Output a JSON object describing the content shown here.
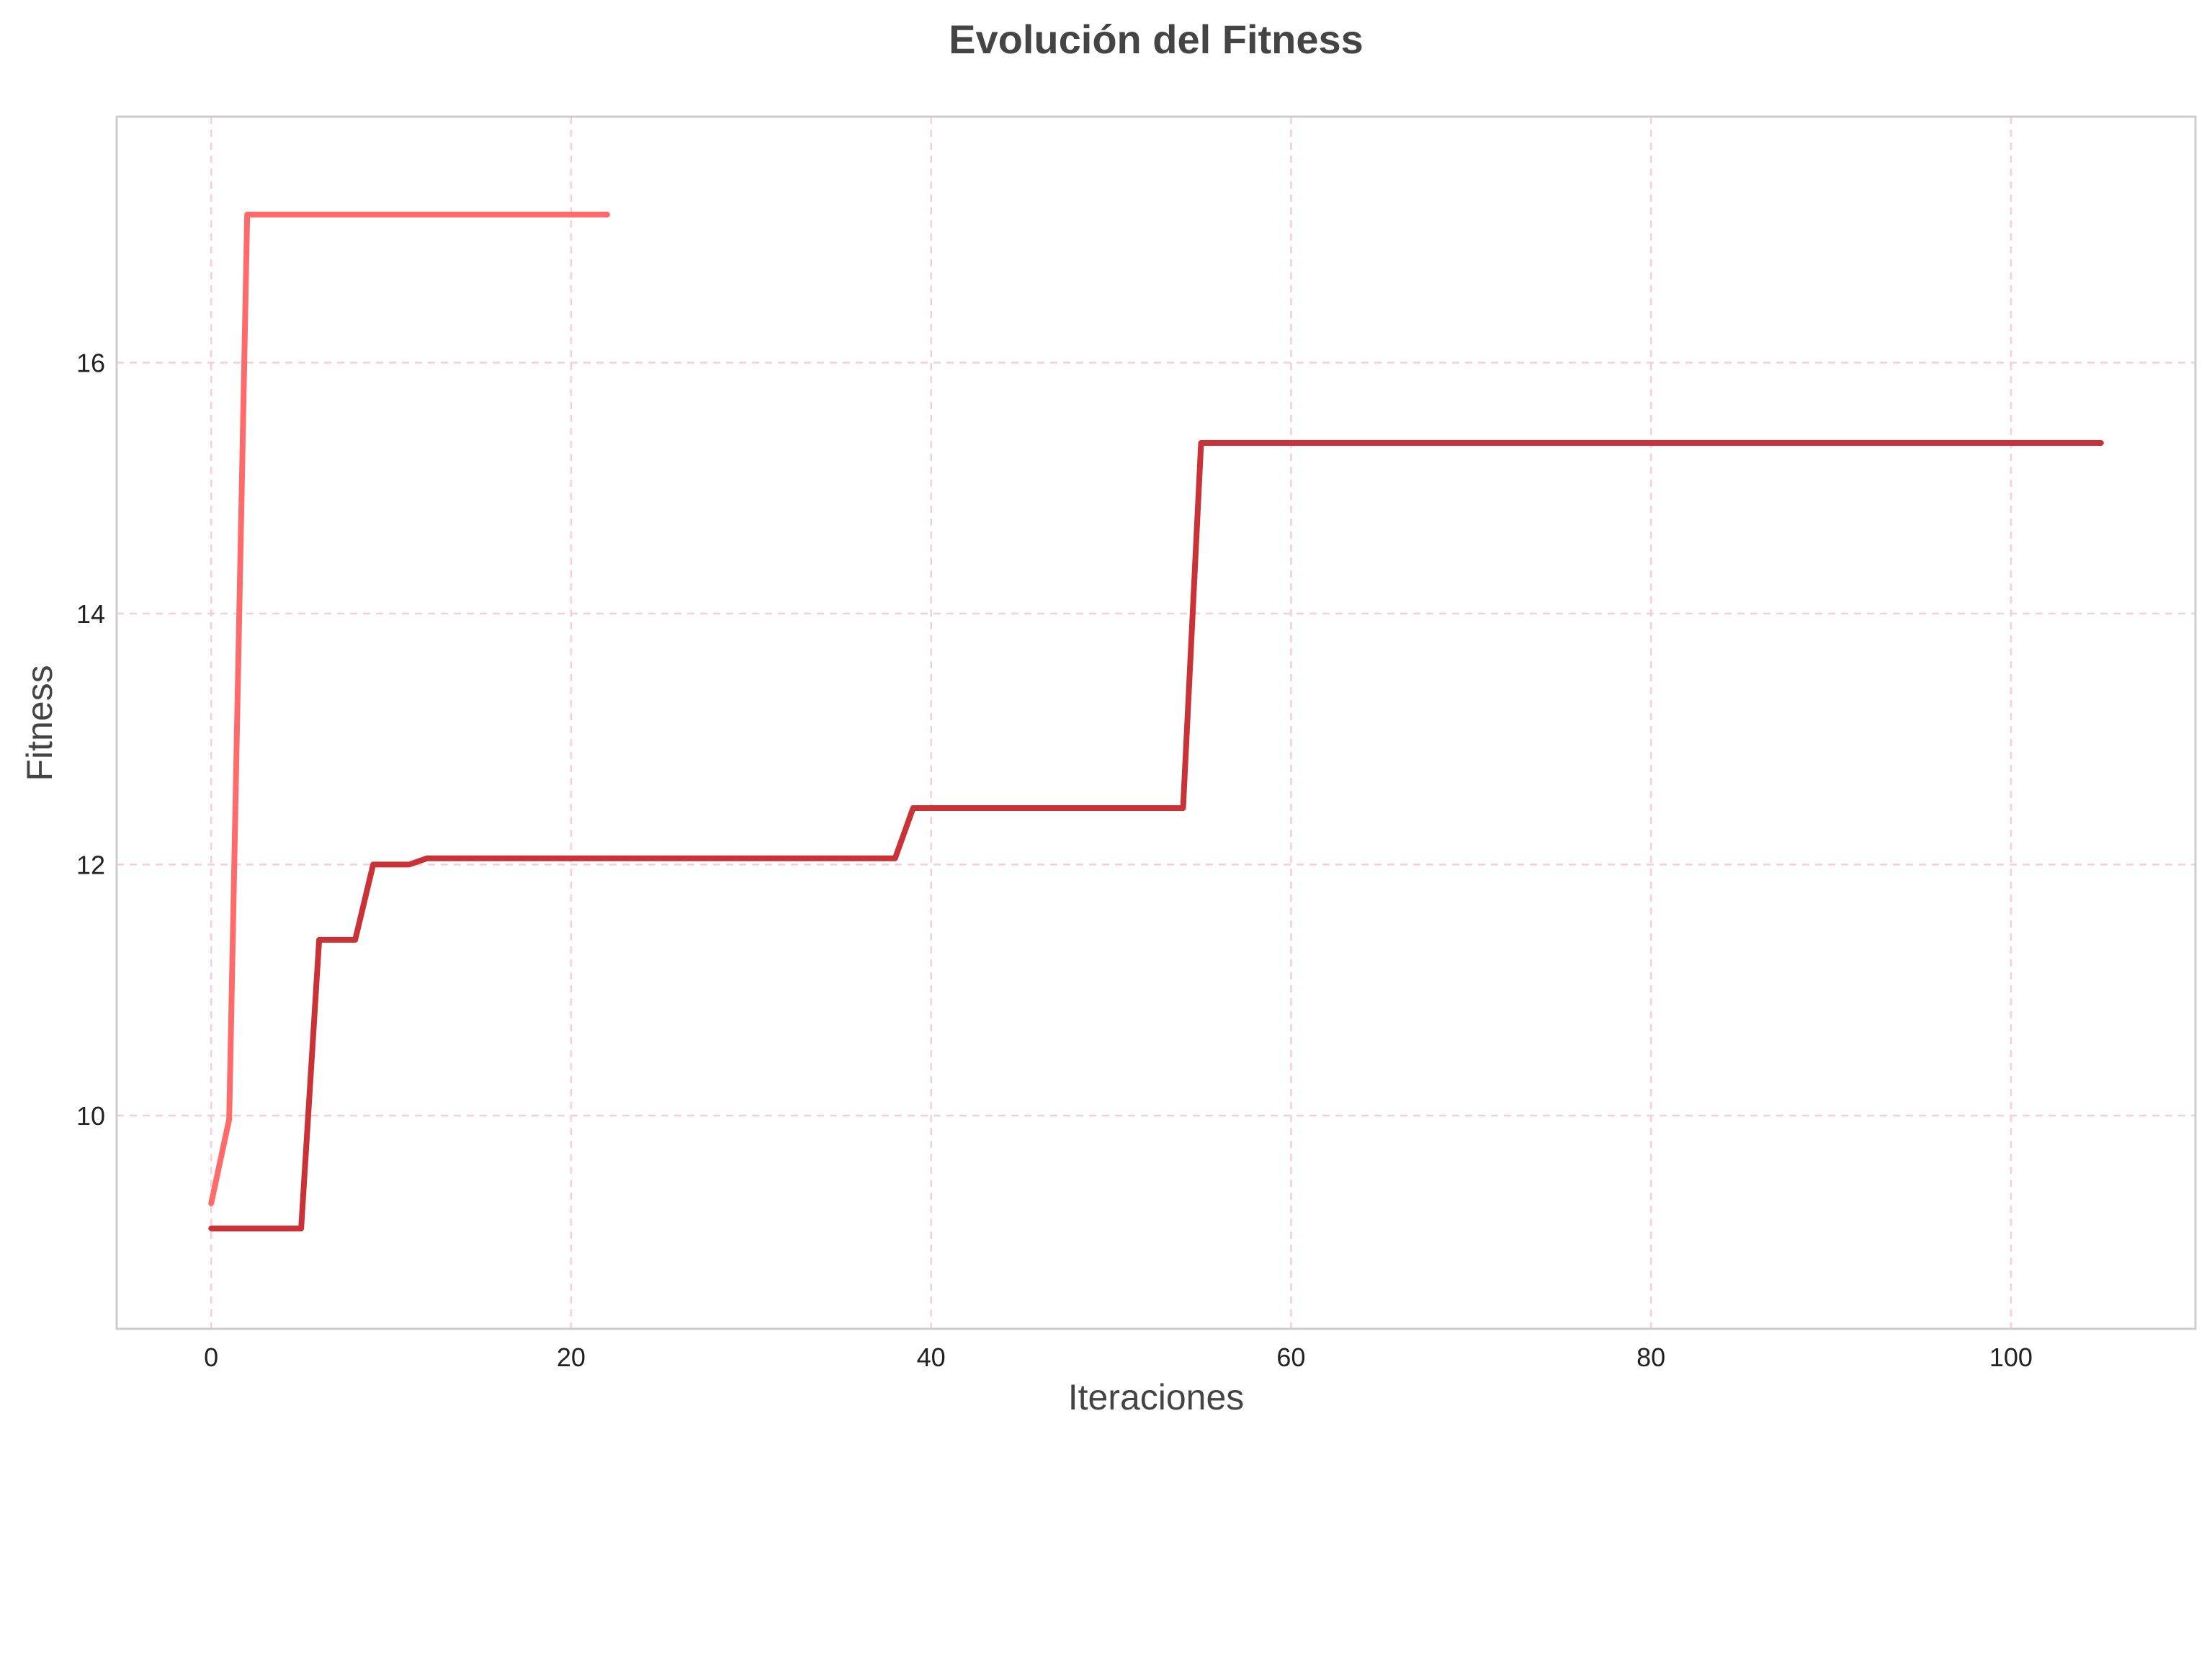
{
  "chart_data": {
    "type": "line",
    "title": "Evolución del Fitness",
    "xlabel": "Iteraciones",
    "ylabel": "Fitness",
    "xlim": [
      -5.25,
      110.25
    ],
    "ylim": [
      8.3,
      17.96
    ],
    "xticks": [
      0,
      20,
      40,
      60,
      80,
      100
    ],
    "yticks": [
      10,
      12,
      14,
      16
    ],
    "grid": true,
    "legend": "none",
    "colors": {
      "title": "#444444",
      "label": "#444444",
      "tick": "#222222",
      "grid": "#f7cdd7",
      "spine": "#cccccc",
      "series_1": "#ff6b6b",
      "series_2": "#c93236"
    },
    "series": [
      {
        "color": "#ff6b6b",
        "x": [
          0,
          1,
          2,
          3,
          4,
          5,
          6,
          7,
          8,
          9,
          10,
          11,
          12,
          13,
          14,
          15,
          16,
          17,
          18,
          19,
          20,
          21,
          22
        ],
        "y": [
          9.3,
          9.97,
          17.18,
          17.18,
          17.18,
          17.18,
          17.18,
          17.18,
          17.18,
          17.18,
          17.18,
          17.18,
          17.18,
          17.18,
          17.18,
          17.18,
          17.18,
          17.18,
          17.18,
          17.18,
          17.18,
          17.18,
          17.18
        ]
      },
      {
        "color": "#c93236",
        "x": [
          0,
          5,
          6,
          8,
          9,
          11,
          12,
          38,
          39,
          54,
          55,
          105
        ],
        "y": [
          9.1,
          9.1,
          11.4,
          11.4,
          12.0,
          12.0,
          12.05,
          12.05,
          12.45,
          12.45,
          15.36,
          15.36
        ]
      }
    ]
  }
}
